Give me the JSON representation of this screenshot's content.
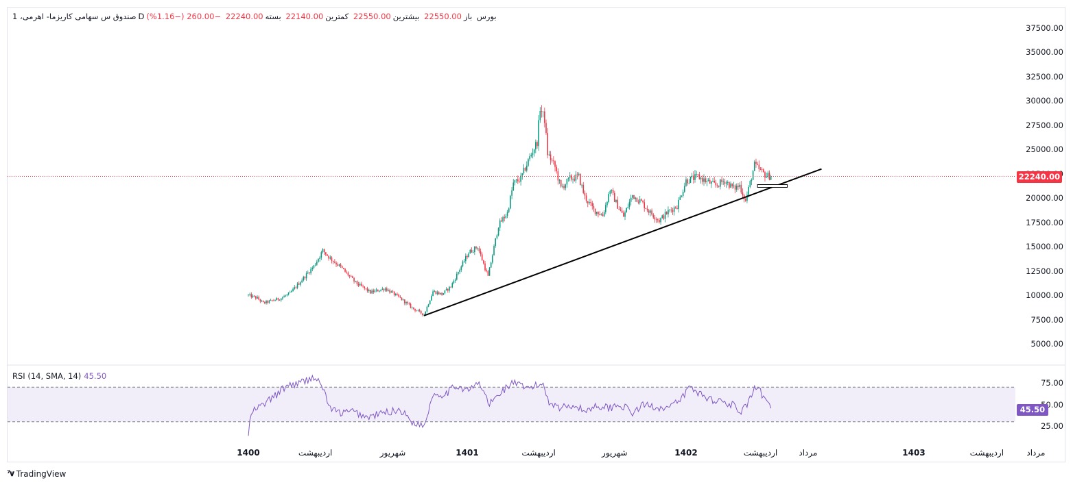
{
  "legend": {
    "symbol": "صندوق س سهامی کاریزما- اهرمی، 1",
    "interval": "D",
    "exchange": "بورس",
    "open_label": "باز",
    "open_value": "22550.00",
    "high_label": "بیشترین",
    "high_value": "22550.00",
    "low_label": "کمترین",
    "low_value": "22140.00",
    "close_label": "بسته",
    "close_value": "22240.00",
    "change": "−260.00 (−1.16%)"
  },
  "rsi": {
    "label": "RSI (14, SMA, 14)",
    "value": "45.50",
    "ticks": [
      "75.00",
      "50.00",
      "25.00"
    ],
    "band": [
      30,
      70
    ],
    "color": "#7e57c2"
  },
  "price_label": "22240.00",
  "branding": "TradingView",
  "colors": {
    "up": "#089981",
    "down": "#f23645",
    "rsi": "#7e57c2",
    "trendline": "#000000"
  },
  "chart_data": {
    "type": "candlestick",
    "title": "",
    "y_ticks": [
      "37500.00",
      "35000.00",
      "32500.00",
      "30000.00",
      "27500.00",
      "25000.00",
      "22500.00",
      "20000.00",
      "17500.00",
      "15000.00",
      "12500.00",
      "10000.00",
      "7500.00",
      "5000.00"
    ],
    "ylim": [
      3200,
      39000
    ],
    "x_ticks": [
      {
        "label": "1400",
        "bold": true,
        "pos": 0
      },
      {
        "label": "اردیبهشت",
        "bold": false,
        "pos": 45
      },
      {
        "label": "شهریور",
        "bold": false,
        "pos": 97
      },
      {
        "label": "1401",
        "bold": true,
        "pos": 147
      },
      {
        "label": "اردیبهشت",
        "bold": false,
        "pos": 195
      },
      {
        "label": "شهریور",
        "bold": false,
        "pos": 246
      },
      {
        "label": "1402",
        "bold": true,
        "pos": 294
      },
      {
        "label": "اردیبهشت",
        "bold": false,
        "pos": 344
      },
      {
        "label": "مرداد",
        "bold": false,
        "pos": 376
      },
      {
        "label": "1403",
        "bold": true,
        "pos": 447
      },
      {
        "label": "اردیبهشت",
        "bold": false,
        "pos": 496
      },
      {
        "label": "مرداد",
        "bold": false,
        "pos": 529
      }
    ],
    "anchors": [
      [
        0,
        10000
      ],
      [
        6,
        9700
      ],
      [
        10,
        9200
      ],
      [
        15,
        9400
      ],
      [
        22,
        9700
      ],
      [
        28,
        10200
      ],
      [
        36,
        11600
      ],
      [
        44,
        13000
      ],
      [
        50,
        14600
      ],
      [
        55,
        13800
      ],
      [
        62,
        12900
      ],
      [
        72,
        11300
      ],
      [
        82,
        10300
      ],
      [
        92,
        10700
      ],
      [
        102,
        9700
      ],
      [
        110,
        8700
      ],
      [
        118,
        8000
      ],
      [
        124,
        10400
      ],
      [
        130,
        10100
      ],
      [
        136,
        10900
      ],
      [
        142,
        12700
      ],
      [
        148,
        14400
      ],
      [
        154,
        15000
      ],
      [
        161,
        11900
      ],
      [
        168,
        17200
      ],
      [
        174,
        18500
      ],
      [
        178,
        21500
      ],
      [
        183,
        22000
      ],
      [
        189,
        24200
      ],
      [
        194,
        25800
      ],
      [
        196,
        29300
      ],
      [
        199,
        28100
      ],
      [
        201,
        24600
      ],
      [
        206,
        23200
      ],
      [
        210,
        21000
      ],
      [
        216,
        22000
      ],
      [
        222,
        22200
      ],
      [
        226,
        20100
      ],
      [
        232,
        18800
      ],
      [
        238,
        18200
      ],
      [
        243,
        20900
      ],
      [
        248,
        19200
      ],
      [
        252,
        18100
      ],
      [
        258,
        20300
      ],
      [
        264,
        19600
      ],
      [
        270,
        18500
      ],
      [
        276,
        17700
      ],
      [
        282,
        18600
      ],
      [
        288,
        19200
      ],
      [
        294,
        21800
      ],
      [
        302,
        22200
      ],
      [
        308,
        21700
      ],
      [
        314,
        21300
      ],
      [
        320,
        21800
      ],
      [
        326,
        21000
      ],
      [
        330,
        21300
      ],
      [
        334,
        19700
      ],
      [
        340,
        23400
      ],
      [
        344,
        22800
      ],
      [
        348,
        22300
      ],
      [
        351,
        22240
      ]
    ],
    "last_close": 22240,
    "trendline": {
      "x0": 118,
      "y0": 7900,
      "x1": 385,
      "y1": 23000
    },
    "marker": {
      "x0": 342,
      "x1": 362,
      "y": 21250
    },
    "rsi_anchors": [
      [
        0,
        15
      ],
      [
        1,
        30
      ],
      [
        3,
        42
      ],
      [
        10,
        50
      ],
      [
        18,
        60
      ],
      [
        26,
        72
      ],
      [
        35,
        75
      ],
      [
        44,
        82
      ],
      [
        50,
        70
      ],
      [
        55,
        45
      ],
      [
        62,
        40
      ],
      [
        70,
        42
      ],
      [
        80,
        35
      ],
      [
        90,
        40
      ],
      [
        102,
        44
      ],
      [
        110,
        30
      ],
      [
        118,
        25
      ],
      [
        124,
        62
      ],
      [
        132,
        62
      ],
      [
        140,
        72
      ],
      [
        148,
        66
      ],
      [
        155,
        75
      ],
      [
        162,
        50
      ],
      [
        170,
        65
      ],
      [
        178,
        76
      ],
      [
        186,
        68
      ],
      [
        194,
        72
      ],
      [
        198,
        74
      ],
      [
        202,
        53
      ],
      [
        210,
        46
      ],
      [
        218,
        50
      ],
      [
        226,
        42
      ],
      [
        234,
        49
      ],
      [
        242,
        46
      ],
      [
        250,
        50
      ],
      [
        258,
        40
      ],
      [
        266,
        50
      ],
      [
        274,
        47
      ],
      [
        282,
        46
      ],
      [
        290,
        54
      ],
      [
        296,
        70
      ],
      [
        302,
        64
      ],
      [
        310,
        56
      ],
      [
        318,
        54
      ],
      [
        326,
        49
      ],
      [
        330,
        39
      ],
      [
        336,
        52
      ],
      [
        340,
        68
      ],
      [
        344,
        64
      ],
      [
        348,
        52
      ],
      [
        351,
        45.5
      ]
    ]
  }
}
